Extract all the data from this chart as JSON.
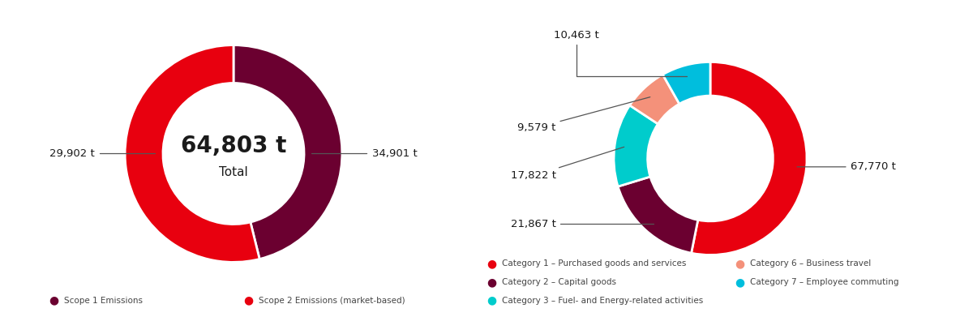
{
  "chart1": {
    "values": [
      29902,
      34901
    ],
    "colors": [
      "#6B0030",
      "#E8000F"
    ],
    "total_label": "64,803 t",
    "total_sublabel": "Total",
    "legend": [
      {
        "color": "#6B0030",
        "label": "Scope 1 Emissions"
      },
      {
        "color": "#E8000F",
        "label": "Scope 2 Emissions (market-based)"
      }
    ]
  },
  "chart2": {
    "values": [
      67770,
      21867,
      17822,
      9579,
      10463
    ],
    "colors": [
      "#E8000F",
      "#6B0030",
      "#00CCCC",
      "#F4917A",
      "#00BEDD"
    ],
    "legend": [
      {
        "color": "#E8000F",
        "label": "Category 1 – Purchased goods and services"
      },
      {
        "color": "#6B0030",
        "label": "Category 2 – Capital goods"
      },
      {
        "color": "#00CCCC",
        "label": "Category 3 – Fuel- and Energy-related activities"
      },
      {
        "color": "#F4917A",
        "label": "Category 6 – Business travel"
      },
      {
        "color": "#00BEDD",
        "label": "Category 7 – Employee commuting"
      }
    ]
  },
  "bg_color": "#FFFFFF",
  "text_color": "#1A1A1A",
  "ann_color": "#555555"
}
